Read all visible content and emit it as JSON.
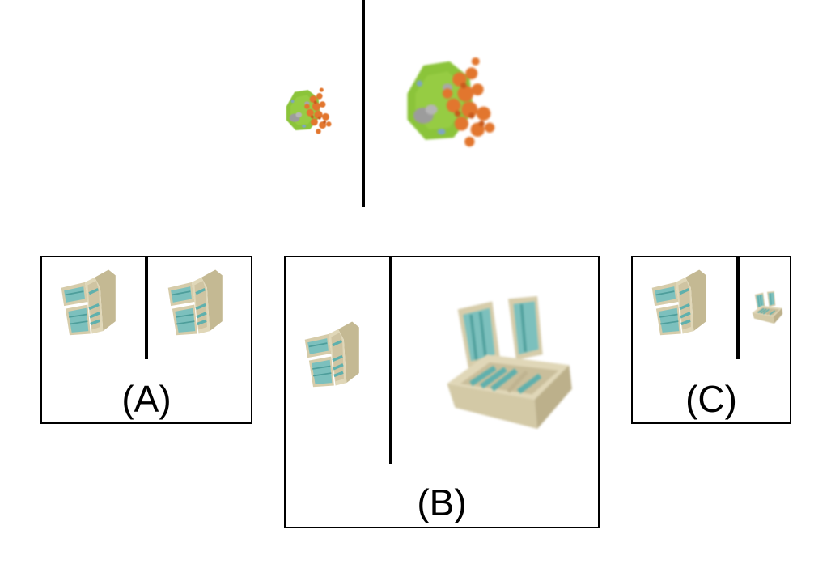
{
  "prompt": {
    "left_object": "island-scene-icon",
    "right_object": "island-scene-icon"
  },
  "options": [
    {
      "label": "(A)",
      "left_object": "refrigerator-icon",
      "right_object": "refrigerator-icon"
    },
    {
      "label": "(B)",
      "left_object": "refrigerator-icon",
      "right_object": "chest-freezer-icon"
    },
    {
      "label": "(C)",
      "left_object": "refrigerator-icon",
      "right_object": "chest-freezer-icon"
    }
  ],
  "colors": {
    "divider": "#000000",
    "grass": "#8bc43a",
    "foliage": "#e2762e",
    "rock": "#a9a9a9",
    "appliance_body": "#d9cfae",
    "appliance_shelf": "#6fb7b4"
  }
}
